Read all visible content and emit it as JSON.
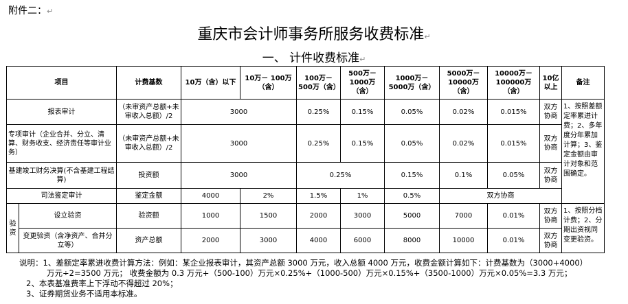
{
  "attachment": "附件二：",
  "title": "重庆市会计师事务所服务收费标准",
  "section_title": "一、  计件收费标准",
  "headers": {
    "item": "项目",
    "basis": "计费基数",
    "c1": "10万（含）以下",
    "c2": "10万－ 100万（含）",
    "c3": "100万－ 500万（含）",
    "c4": "500万－1000万（含）",
    "c5": "1000万－5000万（含）",
    "c6": "5000万－10000万（含）",
    "c7": "10000万－100000万（含）",
    "c8": "10亿以上",
    "remark": "备注"
  },
  "rows": {
    "r1": {
      "item": "报表审计",
      "basis": "（未审资产总额+未审收入总额）/2",
      "v12": "3000",
      "v3": "0.25%",
      "v4": "0.15%",
      "v5": "0.05%",
      "v6": "0.02%",
      "v7": "0.015%",
      "v8": "双方协商"
    },
    "r2": {
      "item": "专项审计（企业合并、分立、清算、财务收支、经济责任等审计业务）",
      "basis": "（未审资产总额+未审收入总额）/2",
      "v12": "3000",
      "v3": "0.25%",
      "v4": "0.15%",
      "v5": "0.05%",
      "v6": "0.02%",
      "v7": "0.015%",
      "v8": "双方协商"
    },
    "r3": {
      "item": "基建竣工财务决算(不含基建工程结算)",
      "basis": "投资额",
      "v12": "3000",
      "v34": "0.25%",
      "v5": "0.15%",
      "v6": "0.1%",
      "v7": "0.05%",
      "v8": "双方协商"
    },
    "r4": {
      "item": "司法鉴定审计",
      "basis": "鉴定金额",
      "v1": "4000",
      "v2": "2%",
      "v3": "1.5%",
      "v4": "1%",
      "v5": "0.5%",
      "v678": "双方协商"
    },
    "group": "验资",
    "r5": {
      "item": "设立验资",
      "basis": "验资额",
      "v1": "1000",
      "v2": "1500",
      "v3": "2000",
      "v4": "3000",
      "v5": "5000",
      "v6": "7000",
      "v7": "0.01%",
      "v8": "双方协商"
    },
    "r6": {
      "item": "变更验资（含净资产、合并分立等）",
      "basis": "资产总额",
      "v1": "2000",
      "v2": "3000",
      "v3": "4000",
      "v4": "6000",
      "v5": "8000",
      "v6": "10000",
      "v7": "0.01%",
      "v8": "双方协商"
    }
  },
  "remarks": {
    "top": "1、按照差额定率累进计费；2、多年度分年累加计算；3、鉴定金额由审计对象和范围确定。",
    "bottom": "1、按照分档计费；2、分期出资视同变更验资。"
  },
  "notes": {
    "n1a": "说明：1、差额定率累进收费计算方法：例如：某企业报表审计，其资产总额 3000 万元，收入总额 4000 万元，收费金额计算如下：计费基数为（3000+4000）",
    "n1b": "万元÷2=3500 万元；    收费金额为 0.3 万元+（500-100）万元×0.25%+（1000-500）万元×0.15%+（3500-1000）万元×0.05%=3.3 万元；",
    "n2": "2、本表基准费率上下浮动不得超过 20%；",
    "n3": "3、证券期货业务不适用本标准。"
  }
}
